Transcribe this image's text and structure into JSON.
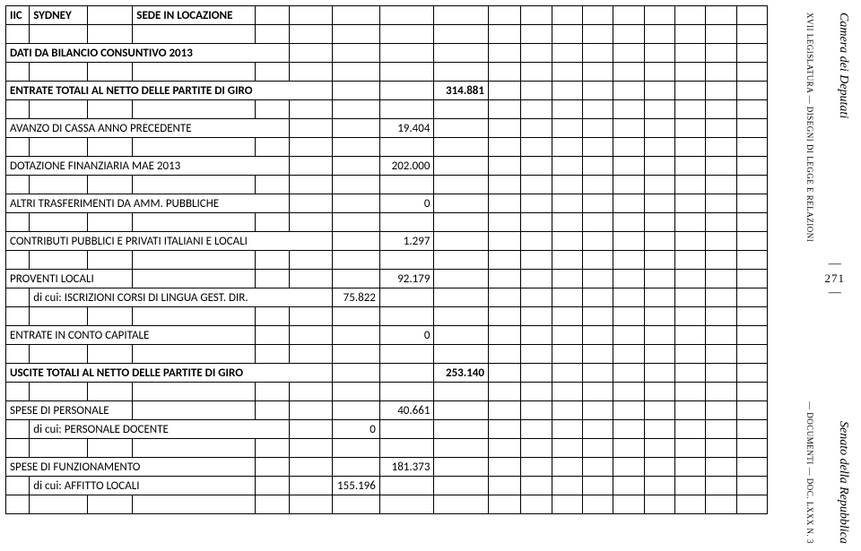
{
  "header": {
    "col0": "IIC",
    "col1": "SYDNEY",
    "col3": "SEDE IN LOCAZIONE"
  },
  "rows": {
    "r2": "DATI DA BILANCIO CONSUNTIVO 2013",
    "r4a": "ENTRATE TOTALI AL NETTO DELLE PARTITE DI GIRO",
    "r4v": "314.881",
    "r6a": "AVANZO DI CASSA ANNO PRECEDENTE",
    "r6v": "19.404",
    "r8a": "DOTAZIONE FINANZIARIA MAE 2013",
    "r8v": "202.000",
    "r10a": "ALTRI TRASFERIMENTI DA AMM. PUBBLICHE",
    "r10v": "0",
    "r12a": "CONTRIBUTI PUBBLICI E PRIVATI ITALIANI E LOCALI",
    "r12v": "1.297",
    "r14a": "PROVENTI LOCALI",
    "r14v": "92.179",
    "r15a": "di cui: ISCRIZIONI CORSI DI LINGUA GEST. DIR.",
    "r15v": "75.822",
    "r17a": "ENTRATE IN CONTO CAPITALE",
    "r17v": "0",
    "r19a": "USCITE TOTALI AL NETTO DELLE PARTITE DI GIRO",
    "r19v": "253.140",
    "r21a": "SPESE DI PERSONALE",
    "r21v": "40.661",
    "r22a": "di cui: PERSONALE DOCENTE",
    "r22v": "0",
    "r24a": "SPESE DI FUNZIONAMENTO",
    "r24v": "181.373",
    "r25a": "di cui: AFFITTO LOCALI",
    "r25v": "155.196"
  },
  "side": {
    "camera": "Camera dei Deputati",
    "senato": "Senato della Repubblica",
    "legis": "XVII LEGISLATURA — DISEGNI DI LEGGE E RELAZIONI",
    "legis2": "— DOCUMENTI — DOC. LXXX N. 3",
    "page": "271"
  }
}
